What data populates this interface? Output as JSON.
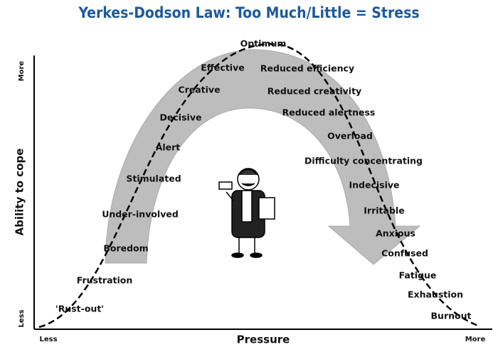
{
  "title": "Yerkes-Dodson Law: Too Much/Little = Stress",
  "axes": {
    "y": {
      "label": "Ability to cope",
      "high": "More",
      "low": "Less"
    },
    "x": {
      "label": "Pressure",
      "low": "Less",
      "high": "More"
    }
  },
  "peak_label": "Optimum",
  "rising_labels": [
    "Effective",
    "Creative",
    "Decisive",
    "Alert",
    "Stimulated",
    "Under-involved",
    "Boredom",
    "Frustration",
    "'Rust-out'"
  ],
  "falling_labels": [
    "Reduced efficiency",
    "Reduced creativity",
    "Reduced alertness",
    "Overload",
    "Difficulty concentrating",
    "Indecisive",
    "Irritable",
    "Anxious",
    "Confused",
    "Fatigue",
    "Exhaustion",
    "Burnout"
  ]
}
